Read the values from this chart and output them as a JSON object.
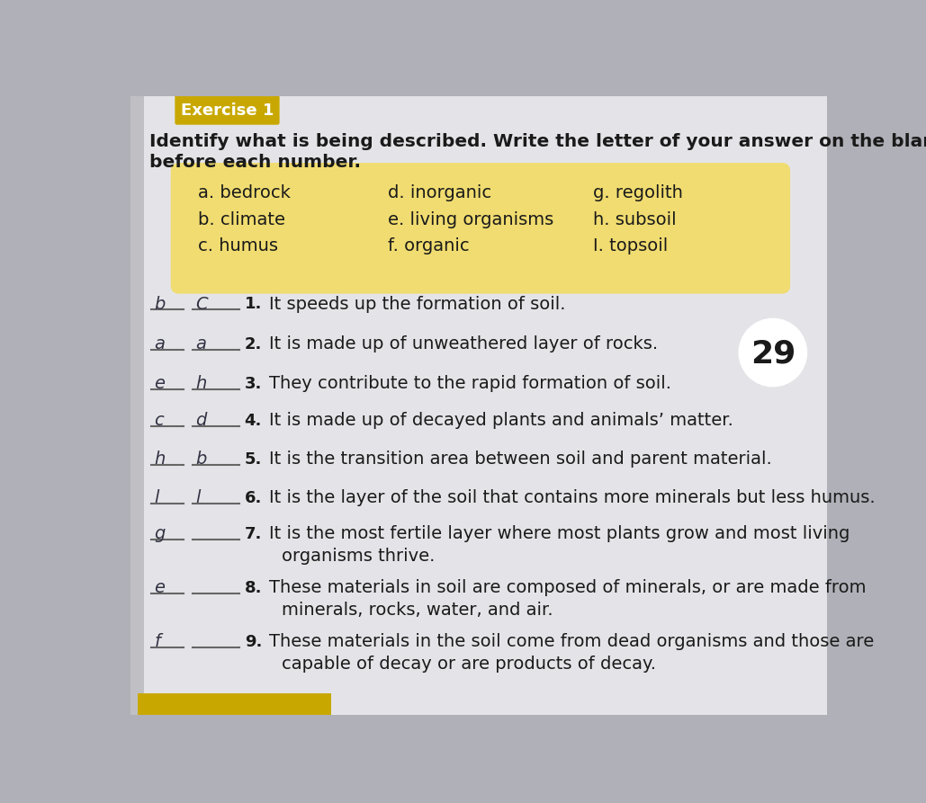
{
  "bg_color": "#b0b0b8",
  "page_bg": "#e8e8ec",
  "exercise_tab_color": "#c8a800",
  "exercise_tab_text": "Exercise 1",
  "title_line1": "Identify what is being described. Write the letter of your answer on the blank",
  "title_line2": "before each number.",
  "word_bank_bg": "#f0dc70",
  "word_bank_items_col1": [
    "a. bedrock",
    "b. climate",
    "c. humus"
  ],
  "word_bank_items_col2": [
    "d. inorganic",
    "e. living organisms",
    "f. organic"
  ],
  "word_bank_items_col3": [
    "g. regolith",
    "h. subsoil",
    "I. topsoil"
  ],
  "questions": [
    {
      "num": "1.",
      "answer1": "b",
      "answer2": "C",
      "text": "It speeds up the formation of soil.",
      "circled": false,
      "multiline": false
    },
    {
      "num": "2.",
      "answer1": "a",
      "answer2": "a",
      "text": "It is made up of unweathered layer of rocks.",
      "circled": false,
      "multiline": false
    },
    {
      "num": "3.",
      "answer1": "e",
      "answer2": "h",
      "text": "They contribute to the rapid formation of soil.",
      "circled": true,
      "multiline": false
    },
    {
      "num": "4.",
      "answer1": "c",
      "answer2": "d",
      "text": "It is made up of decayed plants and animals’ matter.",
      "circled": true,
      "multiline": false
    },
    {
      "num": "5.",
      "answer1": "h",
      "answer2": "b",
      "text": "It is the transition area between soil and parent material.",
      "circled": true,
      "multiline": false
    },
    {
      "num": "6.",
      "answer1": "l",
      "answer2": "l",
      "text": "It is the layer of the soil that contains more minerals but less humus.",
      "circled": true,
      "multiline": false
    },
    {
      "num": "7.",
      "answer1": "g",
      "answer2": "",
      "text": "It is the most fertile layer where most plants grow and most living",
      "text2": "organisms thrive.",
      "circled": true,
      "multiline": true
    },
    {
      "num": "8.",
      "answer1": "e",
      "answer2": "",
      "text": "These materials in soil are composed of minerals, or are made from",
      "text2": "minerals, rocks, water, and air.",
      "circled": true,
      "multiline": true
    },
    {
      "num": "9.",
      "answer1": "f",
      "answer2": "",
      "text": "These materials in the soil come from dead organisms and those are",
      "text2": "capable of decay or are products of decay.",
      "circled": false,
      "multiline": true
    }
  ],
  "circle_number": "29",
  "text_color": "#1a1a1a",
  "answer_color": "#2a2a2a",
  "handwrite_color": "#333344"
}
